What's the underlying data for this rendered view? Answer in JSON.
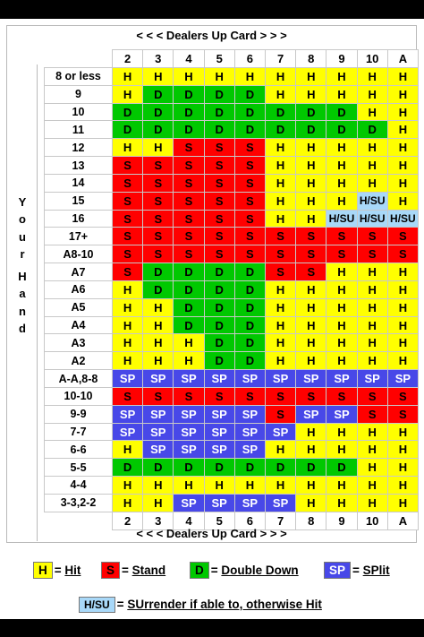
{
  "header_top": "< < <  Dealers Up Card  > > >",
  "header_bottom": "< < <  Dealers Up Card  > > >",
  "side_label": [
    "Y",
    "o",
    "u",
    "r",
    "",
    "H",
    "a",
    "n",
    "d"
  ],
  "dealer_cards": [
    "2",
    "3",
    "4",
    "5",
    "6",
    "7",
    "8",
    "9",
    "10",
    "A"
  ],
  "rows": [
    {
      "hand": "8 or less",
      "actions": [
        "H",
        "H",
        "H",
        "H",
        "H",
        "H",
        "H",
        "H",
        "H",
        "H"
      ]
    },
    {
      "hand": "9",
      "actions": [
        "H",
        "D",
        "D",
        "D",
        "D",
        "H",
        "H",
        "H",
        "H",
        "H"
      ]
    },
    {
      "hand": "10",
      "actions": [
        "D",
        "D",
        "D",
        "D",
        "D",
        "D",
        "D",
        "D",
        "H",
        "H"
      ]
    },
    {
      "hand": "11",
      "actions": [
        "D",
        "D",
        "D",
        "D",
        "D",
        "D",
        "D",
        "D",
        "D",
        "H"
      ]
    },
    {
      "hand": "12",
      "actions": [
        "H",
        "H",
        "S",
        "S",
        "S",
        "H",
        "H",
        "H",
        "H",
        "H"
      ]
    },
    {
      "hand": "13",
      "actions": [
        "S",
        "S",
        "S",
        "S",
        "S",
        "H",
        "H",
        "H",
        "H",
        "H"
      ]
    },
    {
      "hand": "14",
      "actions": [
        "S",
        "S",
        "S",
        "S",
        "S",
        "H",
        "H",
        "H",
        "H",
        "H"
      ]
    },
    {
      "hand": "15",
      "actions": [
        "S",
        "S",
        "S",
        "S",
        "S",
        "H",
        "H",
        "H",
        "H/SU",
        "H"
      ]
    },
    {
      "hand": "16",
      "actions": [
        "S",
        "S",
        "S",
        "S",
        "S",
        "H",
        "H",
        "H/SU",
        "H/SU",
        "H/SU"
      ]
    },
    {
      "hand": "17+",
      "actions": [
        "S",
        "S",
        "S",
        "S",
        "S",
        "S",
        "S",
        "S",
        "S",
        "S"
      ]
    },
    {
      "hand": "A8-10",
      "actions": [
        "S",
        "S",
        "S",
        "S",
        "S",
        "S",
        "S",
        "S",
        "S",
        "S"
      ]
    },
    {
      "hand": "A7",
      "actions": [
        "S",
        "D",
        "D",
        "D",
        "D",
        "S",
        "S",
        "H",
        "H",
        "H"
      ]
    },
    {
      "hand": "A6",
      "actions": [
        "H",
        "D",
        "D",
        "D",
        "D",
        "H",
        "H",
        "H",
        "H",
        "H"
      ]
    },
    {
      "hand": "A5",
      "actions": [
        "H",
        "H",
        "D",
        "D",
        "D",
        "H",
        "H",
        "H",
        "H",
        "H"
      ]
    },
    {
      "hand": "A4",
      "actions": [
        "H",
        "H",
        "D",
        "D",
        "D",
        "H",
        "H",
        "H",
        "H",
        "H"
      ]
    },
    {
      "hand": "A3",
      "actions": [
        "H",
        "H",
        "H",
        "D",
        "D",
        "H",
        "H",
        "H",
        "H",
        "H"
      ]
    },
    {
      "hand": "A2",
      "actions": [
        "H",
        "H",
        "H",
        "D",
        "D",
        "H",
        "H",
        "H",
        "H",
        "H"
      ]
    },
    {
      "hand": "A-A,8-8",
      "actions": [
        "SP",
        "SP",
        "SP",
        "SP",
        "SP",
        "SP",
        "SP",
        "SP",
        "SP",
        "SP"
      ]
    },
    {
      "hand": "10-10",
      "actions": [
        "S",
        "S",
        "S",
        "S",
        "S",
        "S",
        "S",
        "S",
        "S",
        "S"
      ]
    },
    {
      "hand": "9-9",
      "actions": [
        "SP",
        "SP",
        "SP",
        "SP",
        "SP",
        "S",
        "SP",
        "SP",
        "S",
        "S"
      ]
    },
    {
      "hand": "7-7",
      "actions": [
        "SP",
        "SP",
        "SP",
        "SP",
        "SP",
        "SP",
        "H",
        "H",
        "H",
        "H"
      ]
    },
    {
      "hand": "6-6",
      "actions": [
        "H",
        "SP",
        "SP",
        "SP",
        "SP",
        "H",
        "H",
        "H",
        "H",
        "H"
      ]
    },
    {
      "hand": "5-5",
      "actions": [
        "D",
        "D",
        "D",
        "D",
        "D",
        "D",
        "D",
        "D",
        "H",
        "H"
      ]
    },
    {
      "hand": "4-4",
      "actions": [
        "H",
        "H",
        "H",
        "H",
        "H",
        "H",
        "H",
        "H",
        "H",
        "H"
      ]
    },
    {
      "hand": "3-3,2-2",
      "actions": [
        "H",
        "H",
        "SP",
        "SP",
        "SP",
        "SP",
        "H",
        "H",
        "H",
        "H"
      ]
    }
  ],
  "legend": {
    "hit_key": "H",
    "hit_eq": "= ",
    "hit_label": "Hit",
    "stand_key": "S",
    "stand_eq": "= ",
    "stand_label": "Stand",
    "double_key": "D",
    "double_eq": "= ",
    "double_label": "Double Down",
    "split_key": "SP",
    "split_eq": "= ",
    "split_label": "SPlit",
    "surrender_key": "H/SU",
    "surrender_eq": "= ",
    "surrender_label": "SUrrender if able to, otherwise Hit"
  },
  "colors": {
    "hit": "#ffff00",
    "stand": "#ff0000",
    "double": "#00c800",
    "split": "#4848e8",
    "surrender": "#a8d8f8"
  }
}
